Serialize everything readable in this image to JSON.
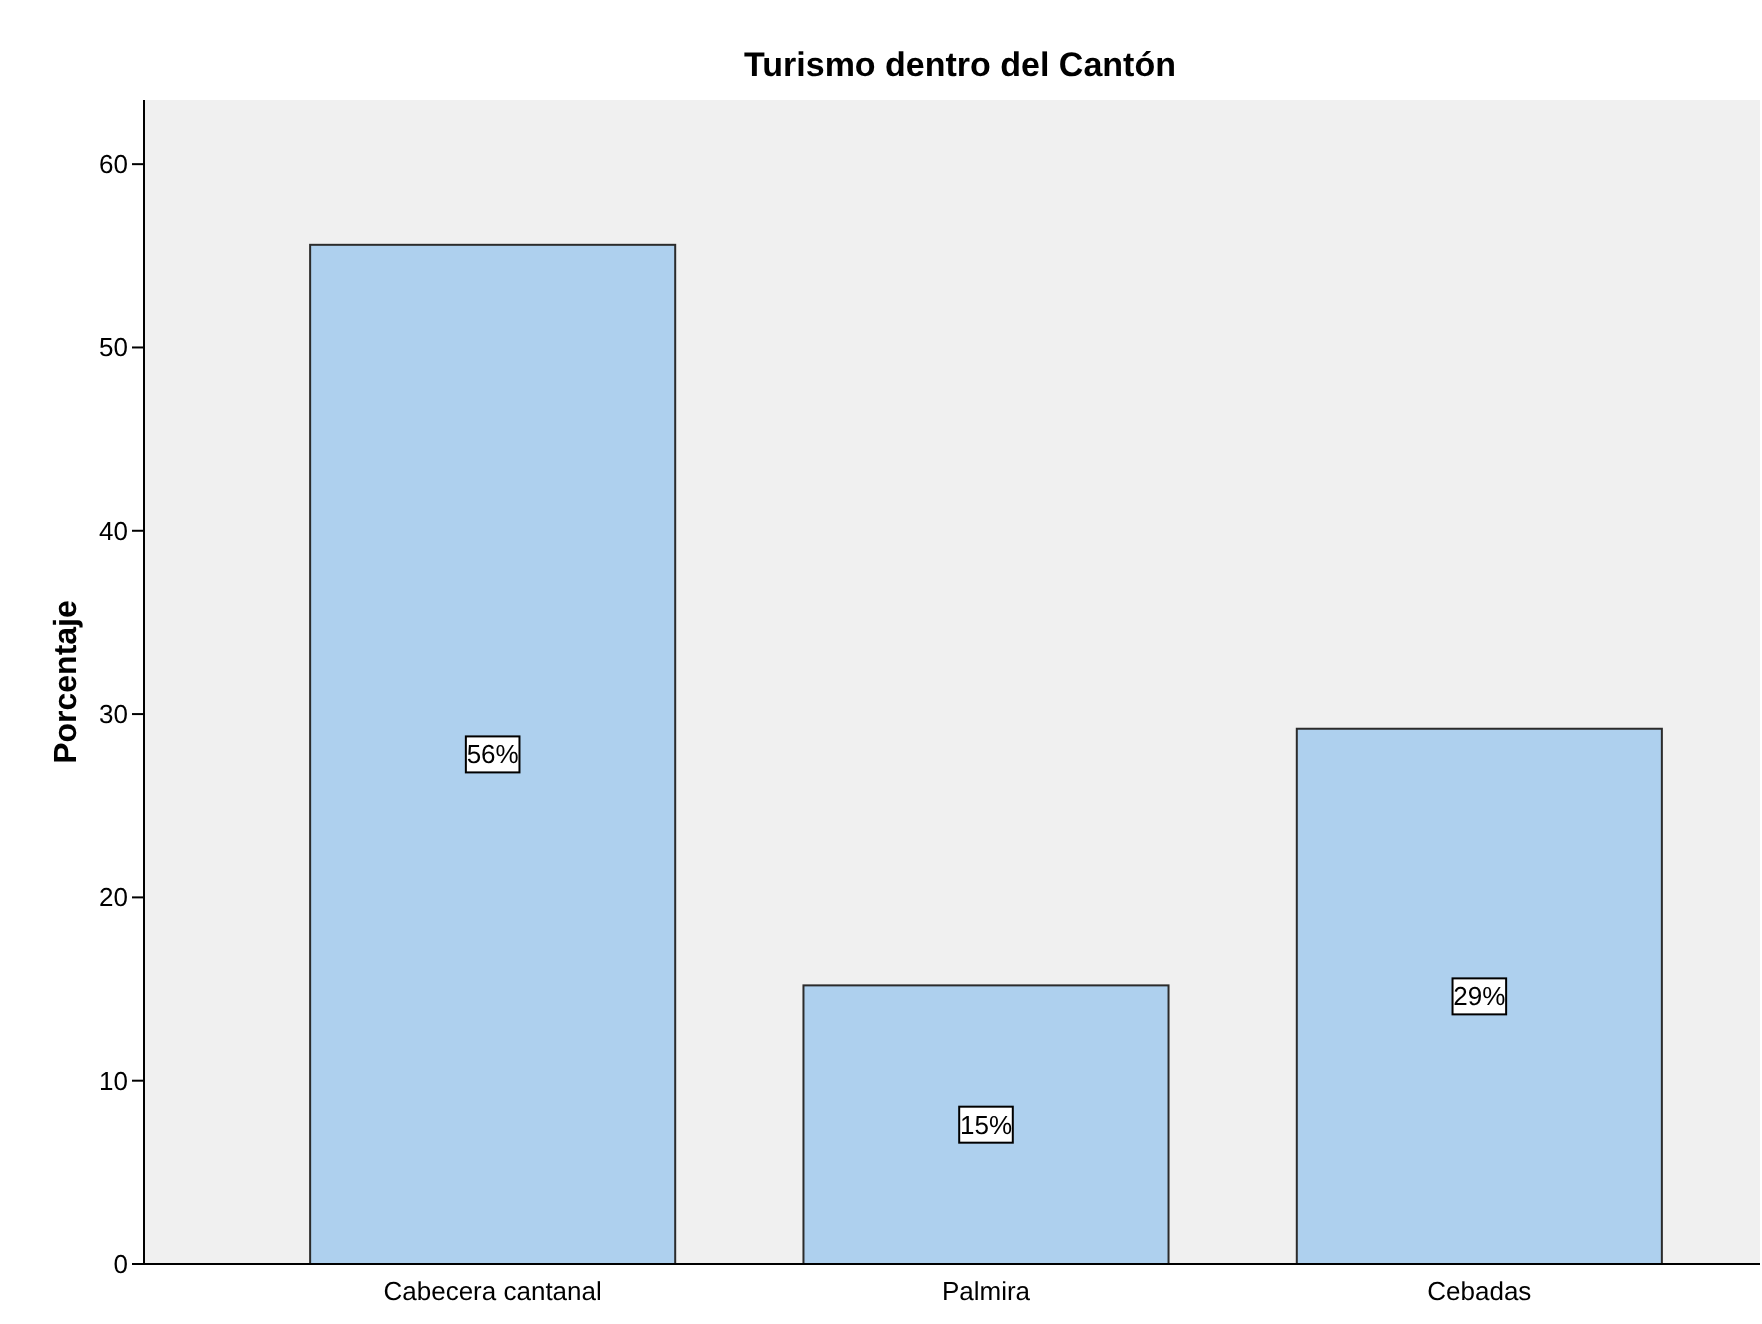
{
  "chart_data": {
    "type": "bar",
    "title": "Turismo dentro del Cantón",
    "ylabel": "Porcentaje",
    "categories": [
      "Cabecera cantanal",
      "Palmira",
      "Cebadas"
    ],
    "values": [
      55.6,
      15.2,
      29.2
    ],
    "value_labels": [
      "56%",
      "15%",
      "29%"
    ],
    "color": "#aed0ee",
    "ylim": [
      0,
      63.5
    ],
    "yticks": [
      0,
      10,
      20,
      30,
      40,
      50,
      60
    ],
    "grid": false
  }
}
